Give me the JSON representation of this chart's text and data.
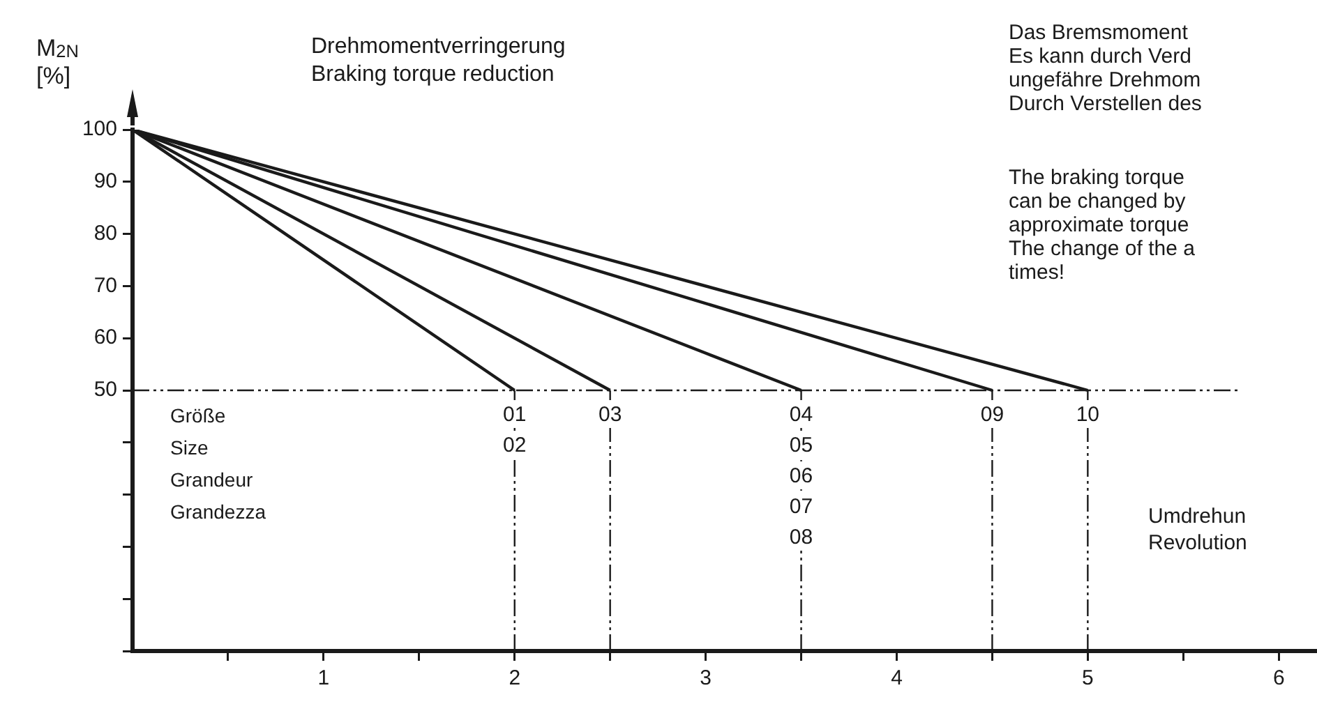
{
  "chart_data": {
    "type": "line",
    "title": "Drehmomentverringerung",
    "subtitle": "Braking torque reduction",
    "ylabel": "M$_{2N}$\n[%]",
    "xlabel": "Umdrehun\nRevolution",
    "legend_title": "Größe\nSize\nGrandeur\nGrandezza",
    "series": [
      {
        "color": "#1a1a1a",
        "x": [
          0,
          2
        ],
        "values": [
          100,
          50
        ]
      },
      {
        "color": "#1a1a1a",
        "x": [
          0,
          2.5
        ],
        "values": [
          100,
          50
        ]
      },
      {
        "color": "#1a1a1a",
        "x": [
          0,
          3.5
        ],
        "values": [
          100,
          50
        ]
      },
      {
        "color": "#1a1a1a",
        "x": [
          0,
          4.5
        ],
        "values": [
          100,
          50
        ]
      },
      {
        "color": "#1a1a1a",
        "x": [
          0,
          5
        ],
        "values": [
          100,
          50
        ]
      }
    ],
    "xlim": [
      0,
      6.2
    ],
    "xticks": [
      {
        "value": 0.5,
        "label": null
      },
      1,
      {
        "value": 1.5,
        "label": null
      },
      2,
      {
        "value": 2.5,
        "label": null
      },
      3,
      {
        "value": 3.5,
        "label": null
      },
      4,
      {
        "value": 4.5,
        "label": null
      },
      5,
      {
        "value": 5.5,
        "label": null
      },
      6
    ],
    "ylim": [
      0,
      100
    ],
    "yticks": [
      {
        "value": 0,
        "label": null
      },
      {
        "value": 10,
        "label": null
      },
      {
        "value": 20,
        "label": null
      },
      {
        "value": 30,
        "label": null
      },
      {
        "value": 40,
        "label": null
      },
      50,
      60,
      70,
      80,
      90,
      100
    ],
    "grid": false,
    "legend": false,
    "marker": "none",
    "line_style": "solid",
    "ref_lines": [
      {
        "axis": "y",
        "value": 50,
        "line_style": "dashed",
        "color": "#1a1a1a"
      },
      {
        "axis": "x",
        "value": 2,
        "line_style": "dashed",
        "color": "#1a1a1a"
      },
      {
        "axis": "x",
        "value": 2.5,
        "line_style": "dashed",
        "color": "#1a1a1a"
      },
      {
        "axis": "x",
        "value": 3.5,
        "line_style": "dashed",
        "color": "#1a1a1a"
      },
      {
        "axis": "x",
        "value": 4.5,
        "line_style": "dashed",
        "color": "#1a1a1a"
      },
      {
        "axis": "x",
        "value": 5,
        "line_style": "dashed",
        "color": "#1a1a1a"
      }
    ],
    "annotations": [
      {
        "text": "01\n02",
        "x": 2,
        "y": 50
      },
      {
        "text": "03",
        "x": 2.5,
        "y": 50
      },
      {
        "text": "04\n05\n06\n07\n08",
        "x": 3.5,
        "y": 50
      },
      {
        "text": "09",
        "x": 4.5,
        "y": 50
      },
      {
        "text": "10",
        "x": 5,
        "y": 50
      },
      "Das Bremsmoment\nEs kann durch Verd\nungefähre Drehmom\nDurch Verstellen des",
      "The braking torque\ncan be changed by\napproximate torque\nThe change of the a\ntimes!"
    ]
  }
}
